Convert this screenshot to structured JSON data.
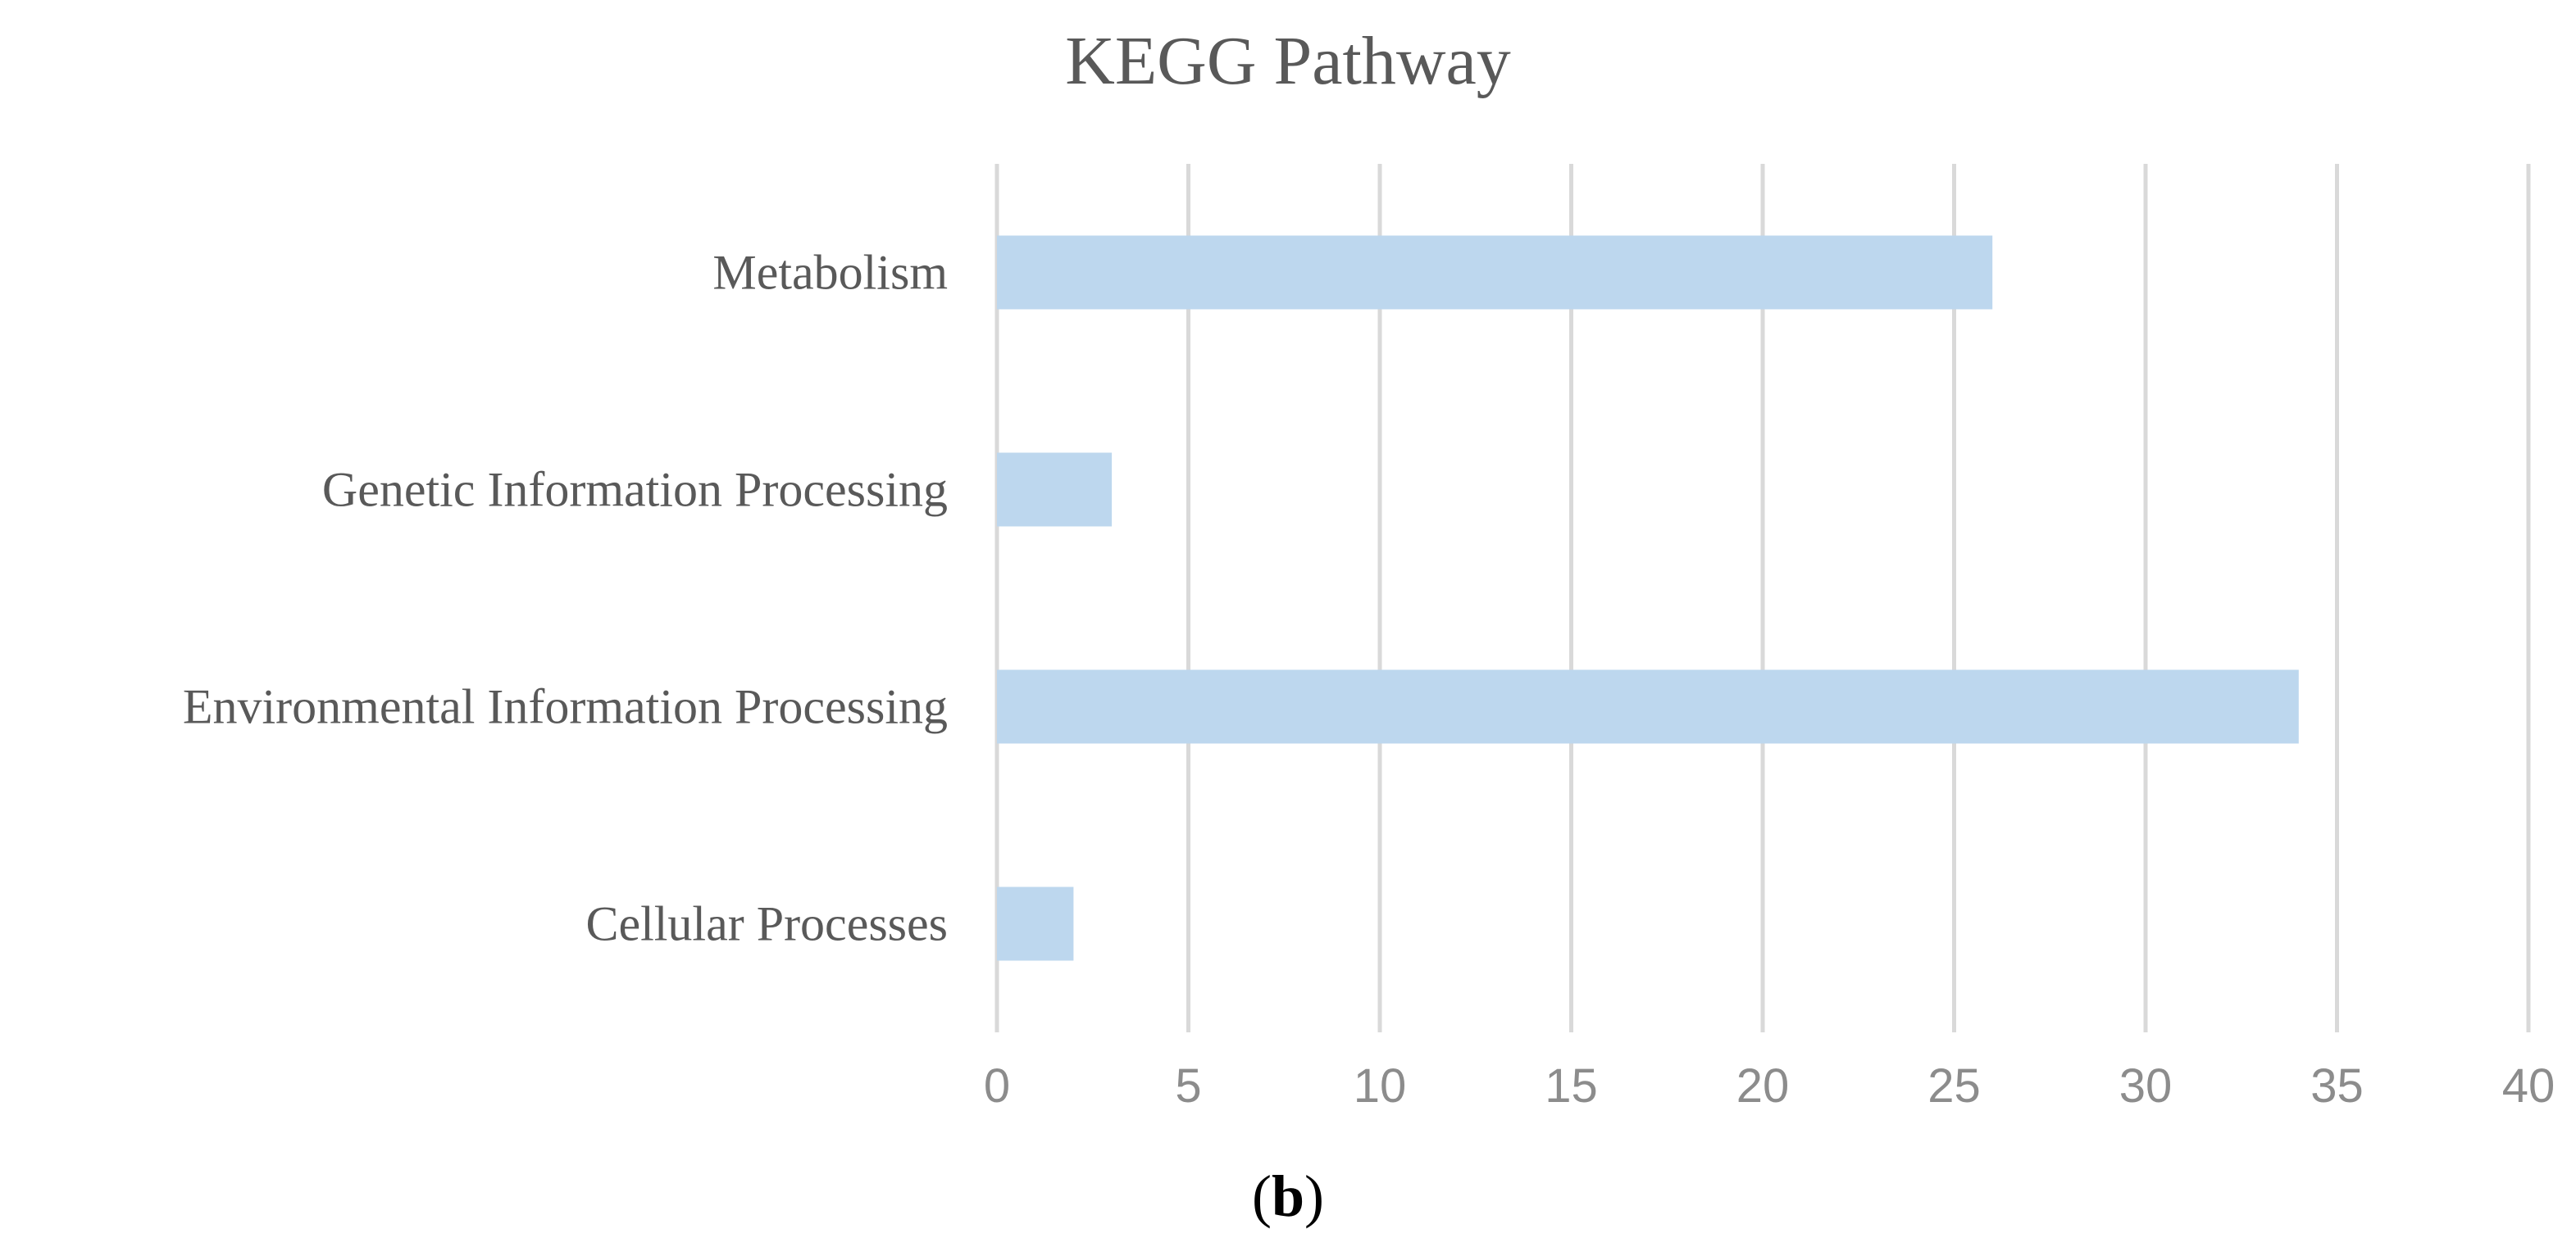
{
  "chart_data": {
    "type": "bar",
    "orientation": "horizontal",
    "title": "KEGG Pathway",
    "categories": [
      "Metabolism",
      "Genetic Information Processing",
      "Environmental Information Processing",
      "Cellular Processes"
    ],
    "values": [
      26,
      3,
      34,
      2
    ],
    "xlim": [
      0,
      40
    ],
    "xticks": [
      0,
      5,
      10,
      15,
      20,
      25,
      30,
      35,
      40
    ],
    "xlabel": "",
    "ylabel": "",
    "grid": true,
    "legend": "none",
    "bar_color": "#bdd7ee",
    "grid_color": "#d9d9d9"
  },
  "panel_label": {
    "open": "(",
    "letter": "b",
    "close": ")"
  }
}
